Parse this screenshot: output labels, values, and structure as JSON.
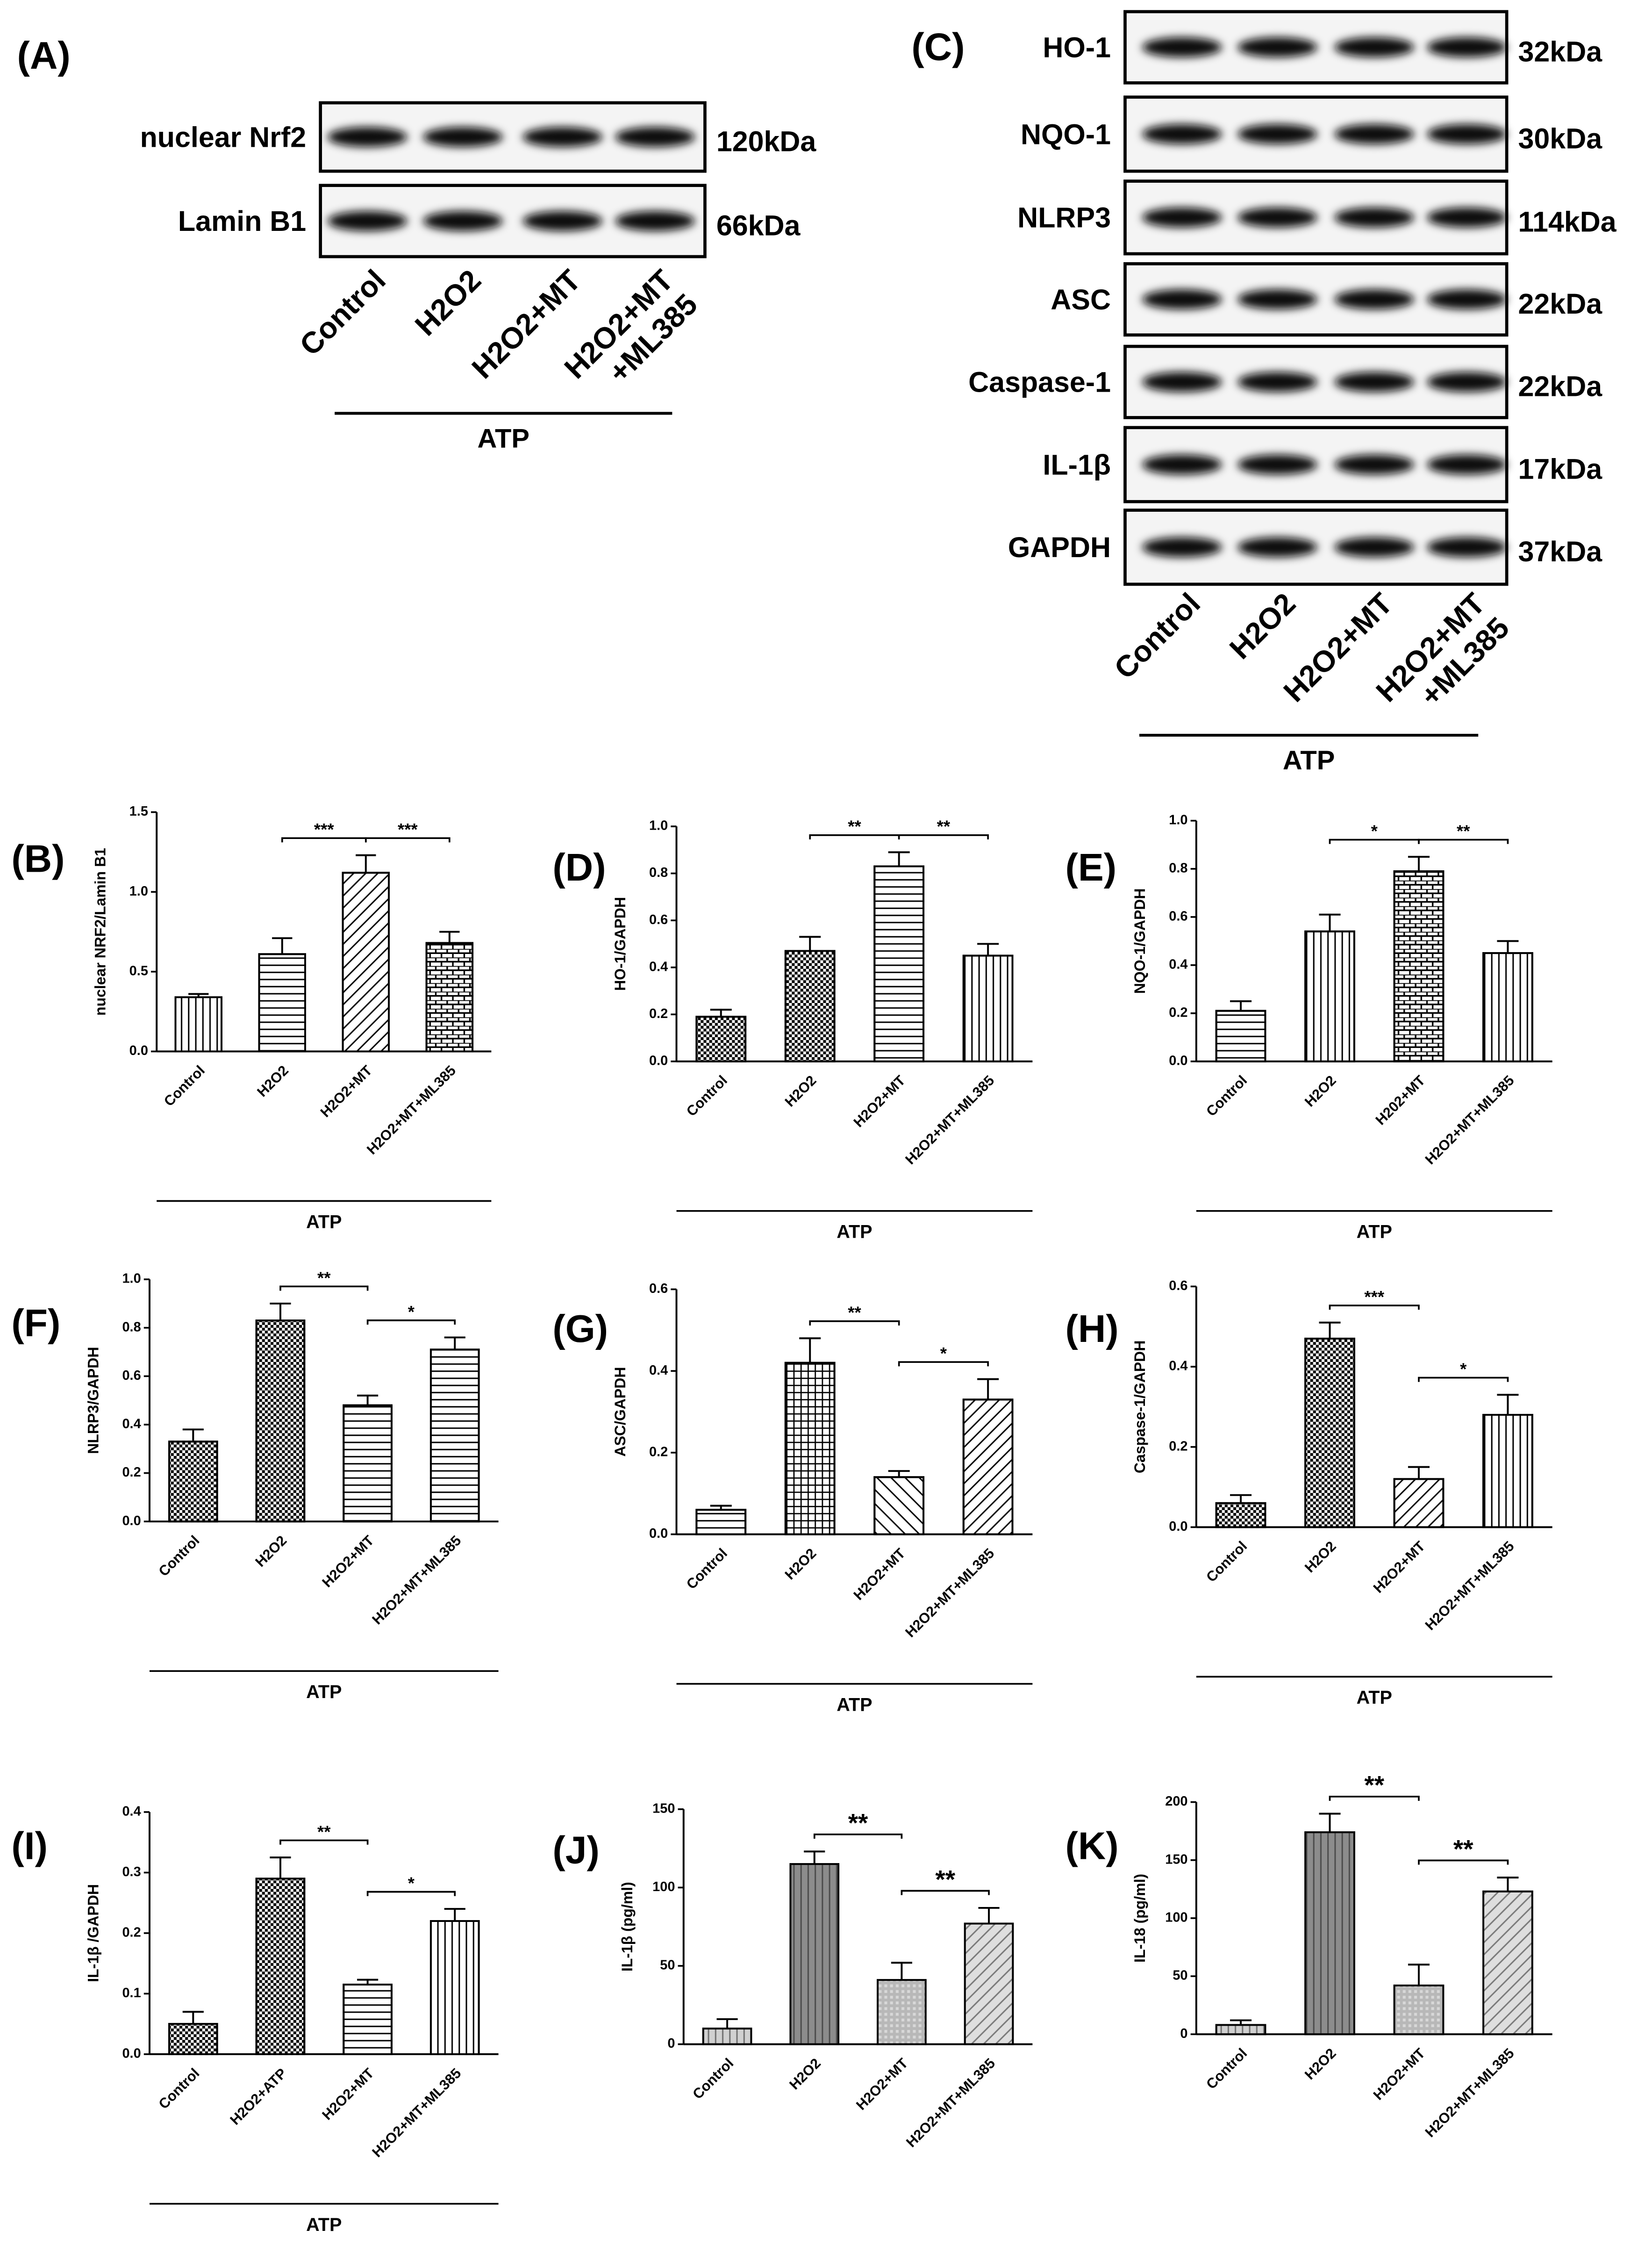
{
  "blots": [
    {
      "label": "(A)",
      "rows": [
        {
          "name": "nuclear Nrf2",
          "size": "120kDa"
        },
        {
          "name": "Lamin B1",
          "size": "66kDa"
        }
      ],
      "lanes": [
        [
          "Control"
        ],
        [
          "H2O2"
        ],
        [
          "H2O2+MT"
        ],
        [
          "H2O2+MT",
          "+ML385"
        ]
      ],
      "group": "ATP"
    },
    {
      "label": "(C)",
      "rows": [
        {
          "name": "HO-1",
          "size": "32kDa"
        },
        {
          "name": "NQO-1",
          "size": "30kDa"
        },
        {
          "name": "NLRP3",
          "size": "114kDa"
        },
        {
          "name": "ASC",
          "size": "22kDa"
        },
        {
          "name": "Caspase-1",
          "size": "22kDa"
        },
        {
          "name": "IL-1β",
          "size": "17kDa"
        },
        {
          "name": "GAPDH",
          "size": "37kDa"
        }
      ],
      "lanes": [
        [
          "Control"
        ],
        [
          "H2O2"
        ],
        [
          "H2O2+MT"
        ],
        [
          "H2O2+MT",
          "+ML385"
        ]
      ],
      "group": "ATP"
    }
  ],
  "chart_data": [
    {
      "type": "bar",
      "label": "(B)",
      "ylabel": "nuclear NRF2/Lamin B1",
      "categories": [
        "Control",
        "H2O2",
        "H2O2+MT",
        "H2O2+MT+ML385"
      ],
      "values": [
        0.34,
        0.61,
        1.12,
        0.68
      ],
      "errors": [
        0.02,
        0.1,
        0.11,
        0.07
      ],
      "ylim": [
        0,
        1.5
      ],
      "yticks": [
        {
          "value": 0,
          "label": "0.0"
        },
        {
          "value": 0.5,
          "label": "0.5"
        },
        {
          "value": 1,
          "label": "1.0"
        },
        {
          "value": 1.5,
          "label": "1.5"
        }
      ],
      "patterns": [
        "vertical",
        "horizontal",
        "diagonal",
        "brick"
      ],
      "annotations": [
        {
          "text": "***",
          "between": [
            "H2O2",
            "H2O2+MT"
          ]
        },
        {
          "text": "***",
          "between": [
            "H2O2+MT",
            "H2O2+MT+ML385"
          ]
        }
      ],
      "group": "ATP"
    },
    {
      "type": "bar",
      "label": "(D)",
      "ylabel": "HO-1/GAPDH",
      "categories": [
        "Control",
        "H2O2",
        "H2O2+MT",
        "H2O2+MT+ML385"
      ],
      "values": [
        0.19,
        0.47,
        0.83,
        0.45
      ],
      "errors": [
        0.03,
        0.06,
        0.06,
        0.05
      ],
      "ylim": [
        0,
        1
      ],
      "yticks": [
        {
          "value": 0,
          "label": "0.0"
        },
        {
          "value": 0.2,
          "label": "0.2"
        },
        {
          "value": 0.4,
          "label": "0.4"
        },
        {
          "value": 0.6,
          "label": "0.6"
        },
        {
          "value": 0.8,
          "label": "0.8"
        },
        {
          "value": 1,
          "label": "1.0"
        }
      ],
      "patterns": [
        "checker",
        "checker",
        "horizontal",
        "vertical"
      ],
      "annotations": [
        {
          "text": "**",
          "between": [
            "H2O2",
            "H2O2+MT"
          ]
        },
        {
          "text": "**",
          "between": [
            "H2O2+MT",
            "H2O2+MT+ML385"
          ]
        }
      ],
      "group": "ATP"
    },
    {
      "type": "bar",
      "label": "(E)",
      "ylabel": "NQO-1/GAPDH",
      "categories": [
        "Control",
        "H2O2",
        "H202+MT",
        "H2O2+MT+ML385"
      ],
      "values": [
        0.21,
        0.54,
        0.79,
        0.45
      ],
      "errors": [
        0.04,
        0.07,
        0.06,
        0.05
      ],
      "ylim": [
        0,
        1
      ],
      "yticks": [
        {
          "value": 0,
          "label": "0.0"
        },
        {
          "value": 0.2,
          "label": "0.2"
        },
        {
          "value": 0.4,
          "label": "0.4"
        },
        {
          "value": 0.6,
          "label": "0.6"
        },
        {
          "value": 0.8,
          "label": "0.8"
        },
        {
          "value": 1,
          "label": "1.0"
        }
      ],
      "patterns": [
        "horizontal",
        "vertical",
        "brick",
        "vertical"
      ],
      "annotations": [
        {
          "text": "*",
          "between": [
            "H2O2",
            "H202+MT"
          ]
        },
        {
          "text": "**",
          "between": [
            "H202+MT",
            "H2O2+MT+ML385"
          ]
        }
      ],
      "group": "ATP"
    },
    {
      "type": "bar",
      "label": "(F)",
      "ylabel": "NLRP3/GAPDH",
      "categories": [
        "Control",
        "H2O2",
        "H2O2+MT",
        "H2O2+MT+ML385"
      ],
      "values": [
        0.33,
        0.83,
        0.48,
        0.71
      ],
      "errors": [
        0.05,
        0.07,
        0.04,
        0.05
      ],
      "ylim": [
        0,
        1
      ],
      "yticks": [
        {
          "value": 0,
          "label": "0.0"
        },
        {
          "value": 0.2,
          "label": "0.2"
        },
        {
          "value": 0.4,
          "label": "0.4"
        },
        {
          "value": 0.6,
          "label": "0.6"
        },
        {
          "value": 0.8,
          "label": "0.8"
        },
        {
          "value": 1,
          "label": "1.0"
        }
      ],
      "patterns": [
        "checker",
        "checker",
        "horizontal",
        "horizontal"
      ],
      "annotations": [
        {
          "text": "**",
          "between": [
            "H2O2",
            "H2O2+MT"
          ]
        },
        {
          "text": "*",
          "between": [
            "H2O2+MT",
            "H2O2+MT+ML385"
          ]
        }
      ],
      "group": "ATP"
    },
    {
      "type": "bar",
      "label": "(G)",
      "ylabel": "ASC/GAPDH",
      "categories": [
        "Control",
        "H2O2",
        "H2O2+MT",
        "H2O2+MT+ML385"
      ],
      "values": [
        0.06,
        0.42,
        0.14,
        0.33
      ],
      "errors": [
        0.01,
        0.06,
        0.015,
        0.05
      ],
      "ylim": [
        0,
        0.6
      ],
      "yticks": [
        {
          "value": 0,
          "label": "0.0"
        },
        {
          "value": 0.2,
          "label": "0.2"
        },
        {
          "value": 0.4,
          "label": "0.4"
        },
        {
          "value": 0.6,
          "label": "0.6"
        }
      ],
      "patterns": [
        "horizontal",
        "grid",
        "antidiagonal",
        "diagonal"
      ],
      "annotations": [
        {
          "text": "**",
          "between": [
            "H2O2",
            "H2O2+MT"
          ]
        },
        {
          "text": "*",
          "between": [
            "H2O2+MT",
            "H2O2+MT+ML385"
          ]
        }
      ],
      "group": "ATP"
    },
    {
      "type": "bar",
      "label": "(H)",
      "ylabel": "Caspase-1/GAPDH",
      "categories": [
        "Control",
        "H2O2",
        "H2O2+MT",
        "H2O2+MT+ML385"
      ],
      "values": [
        0.06,
        0.47,
        0.12,
        0.28
      ],
      "errors": [
        0.02,
        0.04,
        0.03,
        0.05
      ],
      "ylim": [
        0,
        0.6
      ],
      "yticks": [
        {
          "value": 0,
          "label": "0.0"
        },
        {
          "value": 0.2,
          "label": "0.2"
        },
        {
          "value": 0.4,
          "label": "0.4"
        },
        {
          "value": 0.6,
          "label": "0.6"
        }
      ],
      "patterns": [
        "checker",
        "checker",
        "diagonal",
        "vertical"
      ],
      "annotations": [
        {
          "text": "***",
          "between": [
            "H2O2",
            "H2O2+MT"
          ]
        },
        {
          "text": "*",
          "between": [
            "H2O2+MT",
            "H2O2+MT+ML385"
          ]
        }
      ],
      "group": "ATP"
    },
    {
      "type": "bar",
      "label": "(I)",
      "ylabel": "IL-1β /GAPDH",
      "categories": [
        "Control",
        "H2O2+ATP",
        "H2O2+MT",
        "H2O2+MT+ML385"
      ],
      "values": [
        0.05,
        0.29,
        0.115,
        0.22
      ],
      "errors": [
        0.02,
        0.035,
        0.008,
        0.02
      ],
      "ylim": [
        0,
        0.4
      ],
      "yticks": [
        {
          "value": 0,
          "label": "0.0"
        },
        {
          "value": 0.1,
          "label": "0.1"
        },
        {
          "value": 0.2,
          "label": "0.2"
        },
        {
          "value": 0.3,
          "label": "0.3"
        },
        {
          "value": 0.4,
          "label": "0.4"
        }
      ],
      "patterns": [
        "checker",
        "checker",
        "horizontal",
        "vertical"
      ],
      "annotations": [
        {
          "text": "**",
          "between": [
            "H2O2+ATP",
            "H2O2+MT"
          ]
        },
        {
          "text": "*",
          "between": [
            "H2O2+MT",
            "H2O2+MT+ML385"
          ]
        }
      ],
      "group": "ATP"
    },
    {
      "type": "bar",
      "label": "(J)",
      "ylabel": "IL-1β  (pg/ml)",
      "categories": [
        "Control",
        "H2O2",
        "H2O2+MT",
        "H2O2+MT+ML385"
      ],
      "values": [
        10,
        115,
        41,
        77
      ],
      "errors": [
        6,
        8,
        11,
        10
      ],
      "ylim": [
        0,
        150
      ],
      "yticks": [
        0,
        50,
        100,
        150
      ],
      "patterns": [
        "vertical",
        "vertical",
        "dots",
        "diagonal"
      ],
      "colors": [
        "#d0d0d0",
        "#8c8c8c",
        "#b8b8b8",
        "#dedede"
      ],
      "annotations": [
        {
          "text": "**",
          "between": [
            "H2O2",
            "H2O2+MT"
          ]
        },
        {
          "text": "**",
          "between": [
            "H2O2+MT",
            "H2O2+MT+ML385"
          ]
        }
      ]
    },
    {
      "type": "bar",
      "label": "(K)",
      "ylabel": "IL-18  (pg/ml)",
      "categories": [
        "Control",
        "H2O2",
        "H2O2+MT",
        "H2O2+MT+ML385"
      ],
      "values": [
        8,
        174,
        42,
        123
      ],
      "errors": [
        4,
        16,
        18,
        12
      ],
      "ylim": [
        0,
        200
      ],
      "yticks": [
        0,
        50,
        100,
        150,
        200
      ],
      "patterns": [
        "vertical",
        "vertical",
        "dots",
        "diagonal"
      ],
      "colors": [
        "#d0d0d0",
        "#8c8c8c",
        "#b8b8b8",
        "#dedede"
      ],
      "annotations": [
        {
          "text": "**",
          "between": [
            "H2O2",
            "H2O2+MT"
          ]
        },
        {
          "text": "**",
          "between": [
            "H2O2+MT",
            "H2O2+MT+ML385"
          ]
        }
      ]
    }
  ]
}
